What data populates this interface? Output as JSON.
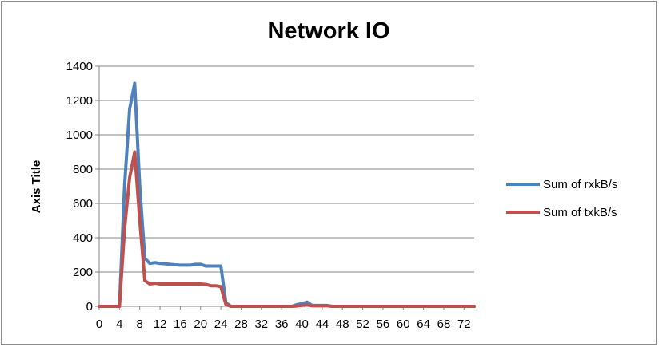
{
  "chart_data": {
    "type": "line",
    "title": "Network IO",
    "xlabel": "",
    "ylabel": "Axis Title",
    "ylim": [
      0,
      1400
    ],
    "yticks": [
      0,
      200,
      400,
      600,
      800,
      1000,
      1200,
      1400
    ],
    "xlim": [
      0,
      74
    ],
    "xticks": [
      0,
      4,
      8,
      12,
      16,
      20,
      24,
      28,
      32,
      36,
      40,
      44,
      48,
      52,
      56,
      60,
      64,
      68,
      72
    ],
    "grid": true,
    "legend_position": "right",
    "x": [
      0,
      1,
      2,
      3,
      4,
      5,
      6,
      7,
      8,
      9,
      10,
      11,
      12,
      13,
      14,
      15,
      16,
      17,
      18,
      19,
      20,
      21,
      22,
      23,
      24,
      25,
      26,
      27,
      28,
      29,
      30,
      31,
      32,
      33,
      34,
      35,
      36,
      37,
      38,
      39,
      40,
      41,
      42,
      43,
      44,
      45,
      46,
      47,
      48,
      49,
      50,
      51,
      52,
      53,
      54,
      55,
      56,
      57,
      58,
      59,
      60,
      61,
      62,
      63,
      64,
      65,
      66,
      67,
      68,
      69,
      70,
      71,
      72,
      73,
      74
    ],
    "series": [
      {
        "name": "Sum of rxkB/s",
        "color": "#4f81bd",
        "values": [
          0,
          0,
          0,
          0,
          0,
          700,
          1150,
          1300,
          700,
          280,
          250,
          255,
          250,
          248,
          245,
          242,
          240,
          240,
          240,
          245,
          245,
          235,
          235,
          235,
          235,
          20,
          0,
          0,
          0,
          0,
          0,
          0,
          0,
          0,
          0,
          0,
          0,
          0,
          0,
          10,
          15,
          25,
          5,
          5,
          5,
          5,
          0,
          0,
          0,
          0,
          0,
          0,
          0,
          0,
          0,
          0,
          0,
          0,
          0,
          0,
          0,
          0,
          0,
          0,
          0,
          0,
          0,
          0,
          0,
          0,
          0,
          0,
          0,
          0,
          0
        ]
      },
      {
        "name": "Sum of txkB/s",
        "color": "#c0504d",
        "values": [
          0,
          0,
          0,
          0,
          0,
          450,
          750,
          900,
          500,
          150,
          130,
          135,
          130,
          130,
          130,
          130,
          130,
          130,
          130,
          130,
          130,
          128,
          120,
          120,
          115,
          10,
          0,
          0,
          0,
          0,
          0,
          0,
          0,
          0,
          0,
          0,
          0,
          0,
          0,
          2,
          5,
          8,
          3,
          3,
          3,
          3,
          0,
          0,
          0,
          0,
          0,
          0,
          0,
          0,
          0,
          0,
          0,
          0,
          0,
          0,
          0,
          0,
          0,
          0,
          0,
          0,
          0,
          0,
          0,
          0,
          0,
          0,
          0,
          0,
          0
        ]
      }
    ]
  }
}
